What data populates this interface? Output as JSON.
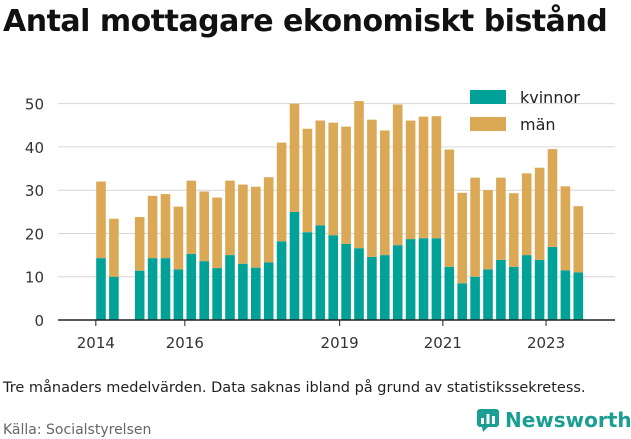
{
  "title": "Antal mottagare ekonomiskt bistånd",
  "note": "Tre månaders medelvärden. Data saknas ibland på grund av statistikssekretess.",
  "source": "Källa: Socialstyrelsen",
  "brand": "Newsworthy",
  "colors": {
    "women": "#00a297",
    "men": "#dba955",
    "brand": "#1a9e93"
  },
  "chart_data": {
    "type": "bar",
    "stacked": true,
    "x": [
      "2014-Q2",
      "2014-Q3",
      "2014-Q4",
      "2015-Q1",
      "2015-Q2",
      "2015-Q3",
      "2015-Q4",
      "2016-Q1",
      "2016-Q2",
      "2016-Q3",
      "2016-Q4",
      "2017-Q1",
      "2017-Q2",
      "2017-Q3",
      "2017-Q4",
      "2018-Q1",
      "2018-Q2",
      "2018-Q3",
      "2018-Q4",
      "2019-Q1",
      "2019-Q2",
      "2019-Q3",
      "2019-Q4",
      "2020-Q1",
      "2020-Q2",
      "2020-Q3",
      "2020-Q4",
      "2021-Q1",
      "2021-Q2",
      "2021-Q3",
      "2021-Q4",
      "2022-Q1",
      "2022-Q2",
      "2022-Q3",
      "2022-Q4",
      "2023-Q1",
      "2023-Q2",
      "2023-Q3"
    ],
    "series": [
      {
        "name": "kvinnor",
        "values": [
          14.3,
          10,
          null,
          11.4,
          14.3,
          14.3,
          11.7,
          15.3,
          13.6,
          12,
          15,
          13,
          12.1,
          13.3,
          18.2,
          25,
          20.3,
          21.9,
          19.6,
          17.6,
          16.6,
          14.6,
          15,
          17.3,
          18.7,
          18.9,
          18.9,
          12.3,
          8.5,
          10,
          11.7,
          13.9,
          12.3,
          15,
          13.9,
          16.9,
          11.5,
          11
        ]
      },
      {
        "name": "män",
        "values": [
          17.7,
          13.4,
          null,
          12.4,
          14.4,
          14.8,
          14.5,
          16.9,
          16.1,
          16.3,
          17.2,
          18.3,
          18.7,
          19.7,
          22.8,
          25,
          23.9,
          24.2,
          26,
          27.1,
          34,
          31.7,
          28.8,
          32.5,
          27.4,
          28.1,
          28.2,
          27.1,
          20.9,
          22.9,
          18.3,
          19,
          17,
          18.9,
          21.3,
          22.6,
          19.4,
          15.3
        ]
      }
    ],
    "xticks": [
      "2014",
      "2016",
      "2019",
      "2021",
      "2023"
    ],
    "yticks": [
      0,
      10,
      20,
      30,
      40,
      50
    ],
    "ylim": [
      0,
      52
    ],
    "legend_position": "top-right",
    "grid": "horizontal"
  }
}
